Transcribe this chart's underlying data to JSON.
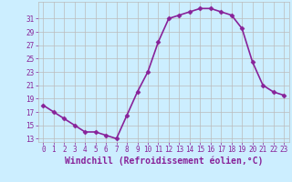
{
  "x": [
    0,
    1,
    2,
    3,
    4,
    5,
    6,
    7,
    8,
    9,
    10,
    11,
    12,
    13,
    14,
    15,
    16,
    17,
    18,
    19,
    20,
    21,
    22,
    23
  ],
  "y": [
    18,
    17,
    16,
    15,
    14,
    14,
    13.5,
    13,
    16.5,
    20,
    23,
    27.5,
    31,
    31.5,
    32,
    32.5,
    32.5,
    32,
    31.5,
    29.5,
    24.5,
    21,
    20,
    19.5
  ],
  "line_color": "#882299",
  "marker": "D",
  "markersize": 2.5,
  "bg_color": "#cceeff",
  "grid_color": "#bbbbbb",
  "xlabel": "Windchill (Refroidissement éolien,°C)",
  "xlabel_fontsize": 7,
  "ylim": [
    12.5,
    33.5
  ],
  "yticks": [
    13,
    15,
    17,
    19,
    21,
    23,
    25,
    27,
    29,
    31
  ],
  "xlim": [
    -0.5,
    23.5
  ],
  "xticks": [
    0,
    1,
    2,
    3,
    4,
    5,
    6,
    7,
    8,
    9,
    10,
    11,
    12,
    13,
    14,
    15,
    16,
    17,
    18,
    19,
    20,
    21,
    22,
    23
  ],
  "tick_color": "#882299",
  "tick_fontsize": 5.5,
  "linewidth": 1.2
}
